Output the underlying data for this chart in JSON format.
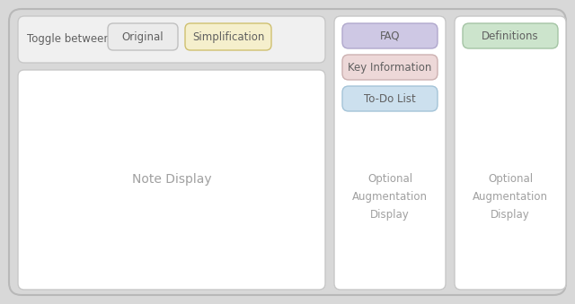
{
  "bg_color": "#d8d8d8",
  "panel_bg": "#ffffff",
  "panel_border": "#c8c8c8",
  "toggle_bar_bg": "#f0f0f0",
  "toggle_label": "Toggle between",
  "btn_original_text": "Original",
  "btn_original_color": "#ebebeb",
  "btn_original_border": "#c0c0c0",
  "btn_simplification_text": "Simplification",
  "btn_simplification_color": "#f5efcc",
  "btn_simplification_border": "#cfc070",
  "faq_text": "FAQ",
  "faq_color": "#cec8e4",
  "faq_border": "#b0a8cc",
  "keyinfo_text": "Key Information",
  "keyinfo_color": "#edd8d8",
  "keyinfo_border": "#ccb0b0",
  "todo_text": "To-Do List",
  "todo_color": "#cce0ee",
  "todo_border": "#a4c4d8",
  "definitions_text": "Definitions",
  "definitions_color": "#cce4cc",
  "definitions_border": "#a4c4a4",
  "note_display_text": "Note Display",
  "optional_aug_text": "Optional\nAugmentation\nDisplay",
  "text_color": "#a0a0a0",
  "toggle_color": "#606060"
}
